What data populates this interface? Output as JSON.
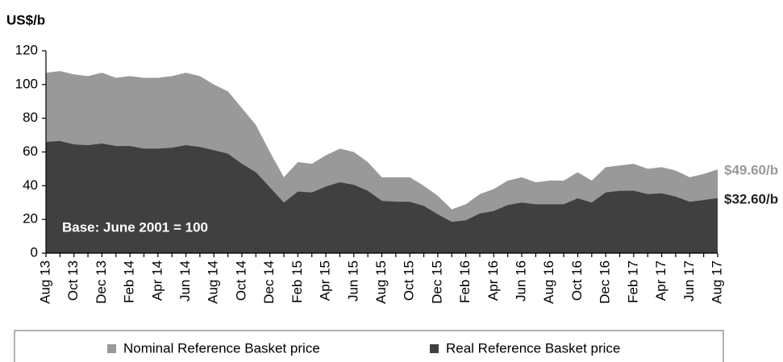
{
  "chart_data": {
    "type": "area",
    "y_label": "US$/b",
    "annotation": "Base: June 2001 = 100",
    "categories": [
      "Aug 13",
      null,
      "Oct 13",
      null,
      "Dec 13",
      null,
      "Feb 14",
      null,
      "Apr 14",
      null,
      "Jun 14",
      null,
      "Aug 14",
      null,
      "Oct 14",
      null,
      "Dec 14",
      null,
      "Feb 15",
      null,
      "Apr 15",
      null,
      "Jun 15",
      null,
      "Aug 15",
      null,
      "Oct 15",
      null,
      "Dec 15",
      null,
      "Feb 16",
      null,
      "Apr 16",
      null,
      "Jun 16",
      null,
      "Aug 16",
      null,
      "Oct 16",
      null,
      "Dec 16",
      null,
      "Feb 17",
      null,
      "Apr 17",
      null,
      "Jun 17",
      null,
      "Aug 17"
    ],
    "series": [
      {
        "name": "Nominal Reference Basket price",
        "color": "#999999",
        "values": [
          107,
          108,
          106,
          105,
          107,
          104,
          105,
          104,
          104,
          105,
          107,
          105,
          100,
          96,
          86,
          76,
          60,
          45,
          54,
          53,
          58,
          62,
          60,
          54,
          45,
          45,
          45,
          40,
          34,
          26,
          29,
          35,
          38,
          43,
          45,
          42,
          43,
          43,
          48,
          43,
          51,
          52,
          53,
          50,
          51,
          49,
          45,
          47,
          49.6
        ],
        "value_labels": [
          null,
          null,
          null,
          null,
          null,
          null,
          null,
          null,
          null,
          null,
          null,
          null,
          null,
          null,
          null,
          null,
          null,
          null,
          null,
          null,
          null,
          null,
          null,
          null,
          null,
          null,
          null,
          null,
          null,
          null,
          null,
          null,
          null,
          null,
          null,
          null,
          null,
          null,
          null,
          null,
          null,
          null,
          null,
          null,
          null,
          null,
          null,
          null,
          "$49.60/b"
        ]
      },
      {
        "name": "Real Reference Basket price",
        "color": "#404040",
        "values": [
          66,
          66.5,
          64.5,
          64,
          65,
          63.5,
          63.5,
          62,
          62,
          62.5,
          64,
          63,
          61,
          59,
          53,
          48,
          39,
          30,
          36.5,
          36,
          39.5,
          42,
          40.5,
          37,
          31,
          30.5,
          30.5,
          28,
          23,
          18.5,
          19.5,
          23.5,
          25,
          28.5,
          30,
          29,
          29,
          29,
          32.5,
          30,
          36,
          37,
          37,
          35,
          35.5,
          33.5,
          30.5,
          31.5,
          32.6
        ],
        "value_labels": [
          null,
          null,
          null,
          null,
          null,
          null,
          null,
          null,
          null,
          null,
          null,
          null,
          null,
          null,
          null,
          null,
          null,
          null,
          null,
          null,
          null,
          null,
          null,
          null,
          null,
          null,
          null,
          null,
          null,
          null,
          null,
          null,
          null,
          null,
          null,
          null,
          null,
          null,
          null,
          null,
          null,
          null,
          null,
          null,
          null,
          null,
          null,
          null,
          "$32.60/b"
        ]
      }
    ],
    "ylim": [
      0,
      120
    ],
    "yticks": [
      0,
      20,
      40,
      60,
      80,
      100,
      120
    ],
    "grid": false
  }
}
